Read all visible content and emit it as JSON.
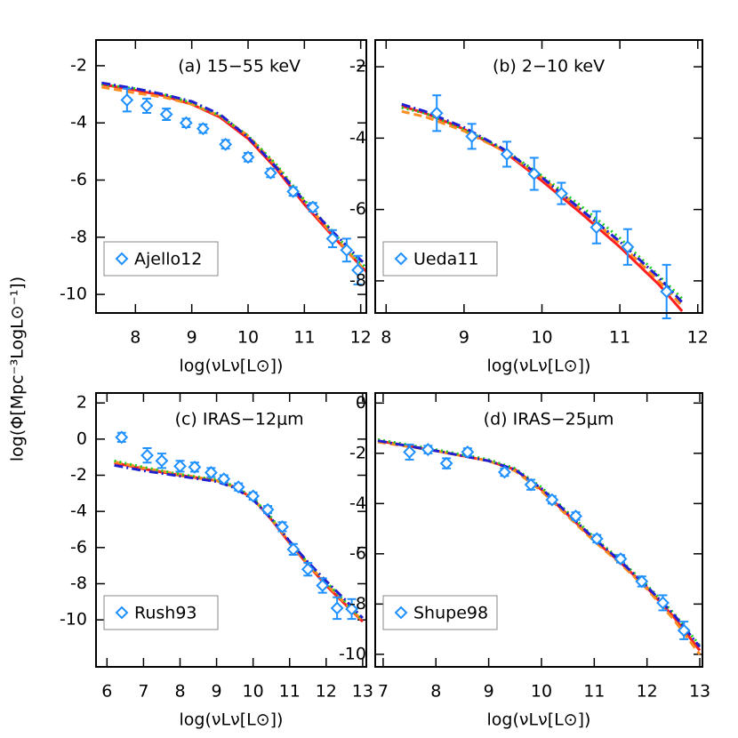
{
  "ylabel": "log(Φ[Mpc⁻³LogL⊙⁻¹])",
  "chart_data": [
    {
      "type": "line",
      "title": "(a) 15−55 keV",
      "xlabel": "log(νLν[L⊙])",
      "legend": "lower left",
      "xlim": [
        7.3,
        12.1
      ],
      "xticks": [
        8,
        9,
        10,
        11,
        12
      ],
      "ylim": [
        -10.65,
        -1.1
      ],
      "yticks": [
        -2,
        -4,
        -6,
        -8,
        -10
      ],
      "x": [
        7.4,
        8,
        8.5,
        9,
        9.5,
        10,
        10.5,
        11,
        11.5,
        12,
        12.2
      ],
      "series": [
        {
          "color": "#ff2020",
          "dash": "solid",
          "values": [
            -2.65,
            -2.85,
            -3.05,
            -3.35,
            -3.8,
            -4.55,
            -5.6,
            -6.85,
            -7.95,
            -9.0,
            -9.4
          ]
        },
        {
          "color": "#ff8c20",
          "dash": "dashed",
          "values": [
            -2.75,
            -2.95,
            -3.1,
            -3.35,
            -3.75,
            -4.45,
            -5.5,
            -6.75,
            -7.9,
            -9.0,
            -9.4
          ]
        },
        {
          "color": "#20d020",
          "dash": "dotted",
          "values": [
            -2.65,
            -2.8,
            -3.0,
            -3.3,
            -3.75,
            -4.45,
            -5.45,
            -6.7,
            -7.8,
            -8.9,
            -9.25
          ]
        },
        {
          "color": "#2020d0",
          "dash": "dashdot",
          "values": [
            -2.6,
            -2.8,
            -3.0,
            -3.25,
            -3.7,
            -4.5,
            -5.55,
            -6.75,
            -7.8,
            -8.8,
            -9.15
          ]
        }
      ],
      "points": {
        "name": "Ajello12",
        "color": "#1e90ff",
        "x": [
          7.85,
          8.2,
          8.55,
          8.9,
          9.2,
          9.6,
          10.0,
          10.4,
          10.8,
          11.15,
          11.5,
          11.75,
          11.95
        ],
        "values": [
          -3.2,
          -3.4,
          -3.7,
          -4.0,
          -4.2,
          -4.75,
          -5.2,
          -5.75,
          -6.4,
          -6.95,
          -8.05,
          -8.45,
          -9.15
        ],
        "errors": [
          0.4,
          0.25,
          0.2,
          0.15,
          0.15,
          0.15,
          0.15,
          0.15,
          0.15,
          0.15,
          0.3,
          0.4,
          0.5
        ]
      }
    },
    {
      "type": "line",
      "title": "(b) 2−10 keV",
      "xlabel": "log(νLν[L⊙])",
      "legend": "lower left",
      "xlim": [
        7.86,
        12.06
      ],
      "xticks": [
        8,
        9,
        10,
        11,
        12
      ],
      "ylim": [
        -8.9,
        -1.25
      ],
      "yticks": [
        -2,
        -4,
        -6,
        -8
      ],
      "x": [
        8.2,
        8.5,
        9,
        9.5,
        10,
        10.5,
        11,
        11.5,
        11.8
      ],
      "series": [
        {
          "color": "#ff2020",
          "dash": "solid",
          "values": [
            -3.1,
            -3.3,
            -3.75,
            -4.35,
            -5.2,
            -6.1,
            -7.05,
            -8.1,
            -8.85
          ]
        },
        {
          "color": "#ff8c20",
          "dash": "dashed",
          "values": [
            -3.25,
            -3.4,
            -3.8,
            -4.35,
            -5.1,
            -6.0,
            -6.95,
            -8.0,
            -8.7
          ]
        },
        {
          "color": "#20d020",
          "dash": "dotted",
          "values": [
            -3.15,
            -3.3,
            -3.75,
            -4.3,
            -5.05,
            -5.9,
            -6.8,
            -7.85,
            -8.5
          ]
        },
        {
          "color": "#2020d0",
          "dash": "dashdot",
          "values": [
            -3.05,
            -3.25,
            -3.7,
            -4.3,
            -5.1,
            -6.0,
            -6.9,
            -7.9,
            -8.6
          ]
        }
      ],
      "points": {
        "name": "Ueda11",
        "color": "#1e90ff",
        "x": [
          8.65,
          9.1,
          9.55,
          9.9,
          10.25,
          10.7,
          11.1,
          11.6
        ],
        "values": [
          -3.3,
          -3.95,
          -4.45,
          -5.0,
          -5.55,
          -6.5,
          -7.05,
          -8.3
        ],
        "errors": [
          0.5,
          0.35,
          0.35,
          0.45,
          0.3,
          0.45,
          0.5,
          0.75
        ]
      }
    },
    {
      "type": "line",
      "title": "(c) IRAS−12μm",
      "xlabel": "log(νLν[L⊙])",
      "legend": "lower left",
      "xlim": [
        5.7,
        13.1
      ],
      "xticks": [
        6,
        7,
        8,
        9,
        10,
        11,
        12,
        13
      ],
      "ylim": [
        -12.6,
        2.55
      ],
      "yticks": [
        2,
        0,
        -2,
        -4,
        -6,
        -8,
        -10
      ],
      "x": [
        6.2,
        7,
        8,
        9,
        9.5,
        10,
        10.5,
        11,
        11.5,
        12,
        12.5,
        13
      ],
      "series": [
        {
          "color": "#ff2020",
          "dash": "solid",
          "values": [
            -1.3,
            -1.65,
            -2.0,
            -2.3,
            -2.65,
            -3.3,
            -4.45,
            -5.75,
            -6.95,
            -8.1,
            -9.1,
            -10.1
          ]
        },
        {
          "color": "#ff8c20",
          "dash": "dashed",
          "values": [
            -1.25,
            -1.6,
            -1.95,
            -2.3,
            -2.65,
            -3.3,
            -4.4,
            -5.7,
            -6.9,
            -8.0,
            -9.05,
            -10.05
          ]
        },
        {
          "color": "#20d020",
          "dash": "dotted",
          "values": [
            -1.2,
            -1.55,
            -1.95,
            -2.25,
            -2.6,
            -3.25,
            -4.35,
            -5.65,
            -6.85,
            -7.9,
            -8.95,
            -10.0
          ]
        },
        {
          "color": "#2020d0",
          "dash": "dashdot",
          "values": [
            -1.45,
            -1.75,
            -2.05,
            -2.35,
            -2.7,
            -3.35,
            -4.4,
            -5.65,
            -6.8,
            -7.85,
            -8.85,
            -9.9
          ]
        }
      ],
      "points": {
        "name": "Rush93",
        "color": "#1e90ff",
        "x": [
          6.4,
          7.1,
          7.5,
          8.0,
          8.4,
          8.85,
          9.2,
          9.6,
          10.0,
          10.4,
          10.8,
          11.1,
          11.5,
          11.9,
          12.3,
          12.7
        ],
        "values": [
          0.1,
          -0.9,
          -1.2,
          -1.5,
          -1.55,
          -1.85,
          -2.2,
          -2.65,
          -3.15,
          -3.9,
          -4.85,
          -6.1,
          -7.2,
          -8.1,
          -9.35,
          -9.4
        ],
        "errors": [
          0.25,
          0.4,
          0.4,
          0.3,
          0.25,
          0.25,
          0.2,
          0.2,
          0.2,
          0.2,
          0.25,
          0.3,
          0.35,
          0.4,
          0.6,
          0.55
        ]
      }
    },
    {
      "type": "line",
      "title": "(d) IRAS−25μm",
      "xlabel": "log(νLν[L⊙])",
      "legend": "lower left",
      "xlim": [
        6.85,
        13.05
      ],
      "xticks": [
        7,
        8,
        9,
        10,
        11,
        12,
        13
      ],
      "ylim": [
        -10.5,
        0.4
      ],
      "yticks": [
        0,
        -2,
        -4,
        -6,
        -8,
        -10
      ],
      "x": [
        6.9,
        8,
        9,
        9.5,
        10,
        10.5,
        11,
        11.5,
        12,
        12.5,
        13
      ],
      "series": [
        {
          "color": "#ff2020",
          "dash": "solid",
          "values": [
            -1.5,
            -1.9,
            -2.3,
            -2.65,
            -3.45,
            -4.45,
            -5.45,
            -6.35,
            -7.35,
            -8.5,
            -9.85
          ]
        },
        {
          "color": "#ff8c20",
          "dash": "dashed",
          "values": [
            -1.55,
            -1.9,
            -2.3,
            -2.7,
            -3.5,
            -4.5,
            -5.5,
            -6.4,
            -7.4,
            -8.6,
            -10.0
          ]
        },
        {
          "color": "#20d020",
          "dash": "dotted",
          "values": [
            -1.45,
            -1.85,
            -2.25,
            -2.6,
            -3.35,
            -4.35,
            -5.35,
            -6.25,
            -7.25,
            -8.35,
            -9.65
          ]
        },
        {
          "color": "#2020d0",
          "dash": "dashdot",
          "values": [
            -1.5,
            -1.9,
            -2.3,
            -2.65,
            -3.4,
            -4.4,
            -5.4,
            -6.3,
            -7.3,
            -8.4,
            -9.7
          ]
        }
      ],
      "points": {
        "name": "Shupe98",
        "color": "#1e90ff",
        "x": [
          7.5,
          7.85,
          8.2,
          8.6,
          9.3,
          9.8,
          10.2,
          10.65,
          11.05,
          11.5,
          11.9,
          12.3,
          12.7
        ],
        "values": [
          -1.95,
          -1.85,
          -2.4,
          -1.95,
          -2.75,
          -3.25,
          -3.85,
          -4.5,
          -5.4,
          -6.2,
          -7.1,
          -7.95,
          -9.05
        ],
        "errors": [
          0.3,
          0.15,
          0.2,
          0.15,
          0.15,
          0.2,
          0.15,
          0.15,
          0.15,
          0.15,
          0.2,
          0.3,
          0.35
        ]
      }
    }
  ]
}
